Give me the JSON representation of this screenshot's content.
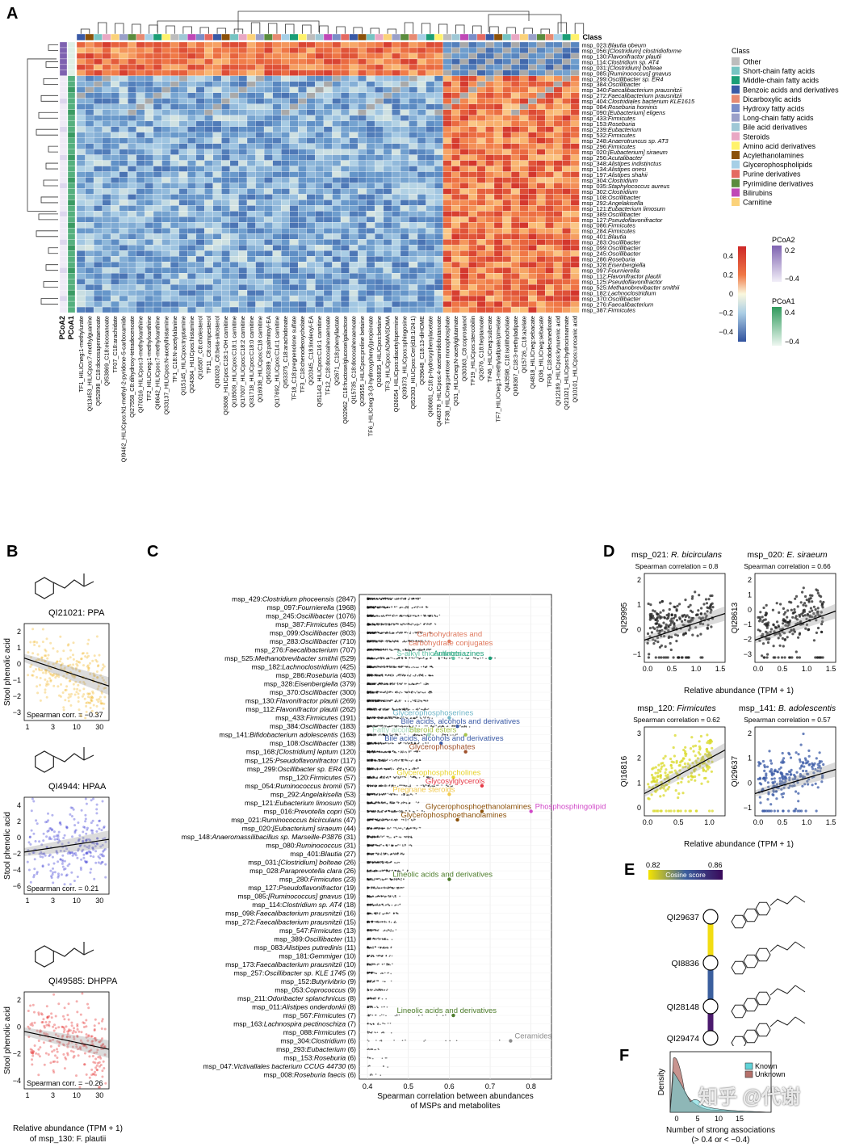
{
  "panels": {
    "A": "A",
    "B": "B",
    "C": "C",
    "D": "D",
    "E": "E",
    "F": "F"
  },
  "heatmap": {
    "class_label": "Class",
    "pcoa_labels": [
      "PCoA2",
      "PCoA1"
    ],
    "rows": [
      "msp_023:Blautia obeum",
      "msp_056:[Clostridium] clostridioforme",
      "msp_130:Flavonifractor plautii",
      "msp_114:Clostridium sp. AT4",
      "msp_031:[Clostridium] bolteae",
      "msp_085:[Ruminococcus] gnavus",
      "msp_299:Oscillibacter sp. ER4",
      "msp_384:Oscillibacter",
      "msp_340:Faecalibacterium prausnitzii",
      "msp_272:Faecalibacterium prausnitzii",
      "msp_404:Clostridiales bacterium KLE1615",
      "msp_084:Roseburia hominis",
      "msp_090:[Eubacterium] eligens",
      "msp_433:Firmicutes",
      "msp_153:Roseburia",
      "msp_239:Eubacterium",
      "msp_532:Firmicutes",
      "msp_248:Anaerotruncus sp. AT3",
      "msp_296:Firmicutes",
      "msp_020:[Eubacterium] siraeum",
      "msp_256:Acutalibacter",
      "msp_348:Alistipes indistinctus",
      "msp_134:Alistipes onesi",
      "msp_197:Alistipes shahii",
      "msp_304:Clostridium",
      "msp_035:Staphylococcus aureus",
      "msp_302:Clostridium",
      "msp_108:Oscillibacter",
      "msp_292:Angelakisella",
      "msp_121:Eubacterium limosum",
      "msp_389:Oscillibacter",
      "msp_127:Pseudoflavonifractor",
      "msp_086:Firmicutes",
      "msp_284:Firmicutes",
      "msp_401:Blautia",
      "msp_283:Oscillibacter",
      "msp_099:Oscillibacter",
      "msp_245:Oscillibacter",
      "msp_286:Roseburia",
      "msp_328:Eisenbergiella",
      "msp_097:Fournierella",
      "msp_112:Flavonifractor plautii",
      "msp_125:Pseudoflavonifractor",
      "msp_525:Methanobrevibacter smithii",
      "msp_182:Lachnoclostridium",
      "msp_370:Oscillibacter",
      "msp_276:Faecalibacterium",
      "msp_387:Firmicutes"
    ],
    "columns": [
      "TF1_HILICneg:1-methylurate",
      "QI13453_HILICpos:7-methylguanine",
      "QI52898_C18:docosapentaenoate",
      "QI53869_C18:eicosanoate",
      "TF07_C18:arachidate",
      "QI9462_HILICpos:N1-methyl-2-pyridone-5-carboxamide",
      "QI27558_C8:dihydroxy-tetradecenoate",
      "QI70016_HILICpos:3-methylxanthine",
      "TF2_HILICneg:1-methylxanthine",
      "QI8642_HILICpos:7-methylxanthine",
      "QI33137_HILICpos:N-acetylhistamine",
      "TF1_C18:N-acetylalanine",
      "QI15145_HILICpos:tryptamine",
      "QI24364_HILICpos:histamine",
      "QI16587_C8:cholesterol",
      "TF11_C8:campesterol",
      "QI30020_C8:beta-sitosterol",
      "QI3608_HILICpos:C18:1-OH carnitine",
      "QI18509_HILICpos:C18:1 carnitine",
      "QI17007_HILICpos:C18:2 carnitine",
      "QI31718_HILICpos:C18:0 carnitine",
      "QI16938_HILICpos:C18 carnitine",
      "QI50389_C8:palmitoyl-EA",
      "QI17692_HILICpos:C14:1 carnitine",
      "QI53375_C18:arachidonate",
      "TF18_C18:pregnenolone sulfate",
      "TF3_C18:chenodeoxycholate",
      "QI20345_C18:linoleoyl-EA",
      "QI51143_HILICpos:C16:1 carnitine",
      "TF12_C18:docosahexaenoate",
      "QI2671_C18:phenyllactate",
      "QI02962_C18:fructose/glucose/galactose",
      "QI15735_C18:docosahexaenoate",
      "QI39555_HILICpos:proline betaine",
      "TF6_HILICneg:3-(3-hydroxyphenyl)propionate",
      "QI26835_HILICpos:betaine",
      "TF3_HILICpos:ADMA/SDMA",
      "QI26054_HILICpos:diacetylspermine",
      "QI39373_HILICpos:sphingosine",
      "QI52303_HILICpos:Cer(d18:1/24:1)",
      "QI39648_C18:13-diHOME",
      "QI08681_C18:p-hydroxyphenylacetate",
      "QI46378_HILICpos:4-acetamidobutanoate",
      "TF38_HILICneg:pentose monophosphate",
      "QI31_HILICneg:N-acetylglutamate",
      "QI30363_C8:coprostanol",
      "TF19_HILICpos:stercobilin",
      "QI2676_C18:heptanoate",
      "TF46_HILICneg:suberate",
      "TF7_HILICneg:3-methyladipate/pimelate",
      "QI43598_C18:isolithocholate",
      "QI08367_C18:3-methyladipate",
      "QI15726_C18:azelate",
      "QI4818_HILICneg:sebacate",
      "QI36_HILICneg:sebacate",
      "TF06_C18:dodecanedioate",
      "QI12189_HILICpos:kynurenic acid",
      "QI21021_HILICpos:hydrocinnamate",
      "QI10101_HILICpos:urocanic acid"
    ],
    "class_legend": {
      "title": "Class",
      "items": [
        {
          "label": "Other",
          "color": "#bdbdbd"
        },
        {
          "label": "Short-chain fatty acids",
          "color": "#76c4c2"
        },
        {
          "label": "Middle-chain fatty acids",
          "color": "#1b9e77"
        },
        {
          "label": "Benzoic acids and derivatives",
          "color": "#3a5aa6"
        },
        {
          "label": "Dicarboxylic acids",
          "color": "#e78a72"
        },
        {
          "label": "Hydroxy fatty acids",
          "color": "#7b8ec8"
        },
        {
          "label": "Long-chain fatty acids",
          "color": "#9aa0c9"
        },
        {
          "label": "Bile acid derivatives",
          "color": "#9fc8d6"
        },
        {
          "label": "Steroids",
          "color": "#e9a8c4"
        },
        {
          "label": "Amino acid derivatives",
          "color": "#fff26b"
        },
        {
          "label": "Acylethanolamines",
          "color": "#8c510a"
        },
        {
          "label": "Glycerophospholipids",
          "color": "#a6cfe6"
        },
        {
          "label": "Purine derivatives",
          "color": "#e46a62"
        },
        {
          "label": "Pyrimidine derivatives",
          "color": "#5a8c3e"
        },
        {
          "label": "Bilirubins",
          "color": "#c048b6"
        },
        {
          "label": "Carnitine",
          "color": "#fbd27a"
        }
      ]
    },
    "scale_ticks": [
      "0.4",
      "0.2",
      "0",
      "−0.2",
      "−0.4"
    ],
    "pcoa2_legend": {
      "title": "PCoA2",
      "ticks": [
        "0.2",
        "−0.4"
      ]
    },
    "pcoa1_legend": {
      "title": "PCoA1",
      "ticks": [
        "0.4",
        "−0.4"
      ]
    }
  },
  "panelB": {
    "plots": [
      {
        "title": "QI21021: PPA",
        "ylabel": "Stool phenolic acid",
        "stat": "Spearman corr. = −0.37",
        "yticks": [
          "2",
          "1",
          "0",
          "−1",
          "−2",
          "−3"
        ],
        "color": "#f0b21a"
      },
      {
        "title": "QI4944: HPAA",
        "ylabel": "Stool phenolic acid",
        "stat": "Spearman corr. = 0.21",
        "yticks": [
          "4",
          "2",
          "0",
          "−2",
          "−4",
          "−6"
        ],
        "color": "#2a2ad0"
      },
      {
        "title": "QI49585: DHPPA",
        "ylabel": "Stool phenolic acid",
        "stat": "Spearman corr. = −0.26",
        "yticks": [
          "2",
          "0",
          "−2",
          "−4"
        ],
        "color": "#e21b1b"
      }
    ],
    "xticks": [
      "1",
      "3",
      "10",
      "30"
    ],
    "xlabel_line1": "Relative abundance (TPM + 1)",
    "xlabel_line2": "of msp_130: F. plautii"
  },
  "chart_data": [
    {
      "type": "scatter",
      "title": "",
      "xlabel": "Spearman correlation between abundances of MSPs and metabolites",
      "ylabel": "",
      "xlim": [
        0.38,
        0.85
      ],
      "xticks": [
        "0.4",
        "0.5",
        "0.6",
        "0.7",
        "0.8"
      ],
      "categories": [
        "msp_429:Clostridium phoceensis (2847)",
        "msp_097:Fournierella (1968)",
        "msp_245:Oscillibacter (1076)",
        "msp_387:Firmicutes (845)",
        "msp_099:Oscillibacter (803)",
        "msp_283:Oscillibacter (710)",
        "msp_276:Faecalibacterium (707)",
        "msp_525:Methanobrevibacter smithii (529)",
        "msp_182:Lachnoclostridium (425)",
        "msp_286:Roseburia (403)",
        "msp_328:Eisenbergiella (379)",
        "msp_370:Oscillibacter (300)",
        "msp_130:Flavonifractor plautii (269)",
        "msp_112:Flavonifractor plautii (262)",
        "msp_433:Firmicutes (191)",
        "msp_384:Oscillibacter (183)",
        "msp_141:Bifidobacterium adolescentis (163)",
        "msp_108:Oscillibacter (138)",
        "msp_168:[Clostridium] leptum (120)",
        "msp_125:Pseudoflavonifractor (117)",
        "msp_299:Oscillibacter sp. ER4 (90)",
        "msp_120:Firmicutes (57)",
        "msp_054:Ruminococcus bromii (57)",
        "msp_292:Angelakisella (53)",
        "msp_121:Eubacterium limosum (50)",
        "msp_016:Prevotella copri (50)",
        "msp_021:Ruminococcus bicirculans (47)",
        "msp_020:[Eubacterium] siraeum (44)",
        "msp_148:Anaeromassilibacillus sp. Marseille-P3876 (31)",
        "msp_080:Ruminococcus (31)",
        "msp_401:Blautia (27)",
        "msp_031:[Clostridium] bolteae (26)",
        "msp_028:Paraprevotella clara (26)",
        "msp_280:Firmicutes (23)",
        "msp_127:Pseudoflavonifractor (19)",
        "msp_085:[Ruminococcus] gnavus (19)",
        "msp_114:Clostridium sp. AT4 (18)",
        "msp_098:Faecalibacterium prausnitzii (16)",
        "msp_272:Faecalibacterium prausnitzii (15)",
        "msp_547:Firmicutes (13)",
        "msp_389:Oscillibacter (11)",
        "msp_083:Alistipes putredinis (11)",
        "msp_181:Gemmiger (10)",
        "msp_173:Faecalibacterium prausnitzii (10)",
        "msp_257:Oscillibacter sp. KLE 1745 (9)",
        "msp_152:Butyrivibrio (9)",
        "msp_053:Coprococcus (9)",
        "msp_211:Odoribacter splanchnicus (8)",
        "msp_011:Alistipes onderdonkii (8)",
        "msp_567:Firmicutes (7)",
        "msp_163:Lachnospira pectinoschiza (7)",
        "msp_088:Firmicutes (7)",
        "msp_304:Clostridium (6)",
        "msp_293:Eubacterium (6)",
        "msp_153:Roseburia (6)",
        "msp_047:Victivallales bacterium CCUG 44730 (6)",
        "msp_008:Roseburia faecis (6)"
      ],
      "max_values": [
        0.53,
        0.55,
        0.58,
        0.57,
        0.56,
        0.55,
        0.56,
        0.72,
        0.56,
        0.56,
        0.55,
        0.56,
        0.55,
        0.55,
        0.56,
        0.65,
        0.62,
        0.55,
        0.53,
        0.53,
        0.53,
        0.56,
        0.62,
        0.52,
        0.53,
        0.54,
        0.52,
        0.53,
        0.51,
        0.51,
        0.49,
        0.48,
        0.5,
        0.49,
        0.49,
        0.48,
        0.48,
        0.48,
        0.47,
        0.47,
        0.46,
        0.46,
        0.46,
        0.47,
        0.46,
        0.46,
        0.45,
        0.45,
        0.45,
        0.61,
        0.46,
        0.46,
        0.75,
        0.45,
        0.45,
        0.45,
        0.45
      ],
      "annotations": [
        {
          "row": 5,
          "x": 0.6,
          "label": "Carbohydrates and carbohydrate conjugates",
          "color": "#e07a5f"
        },
        {
          "row": 7,
          "x": 0.7,
          "label": "Aminotriazines",
          "color": "#1b9e77"
        },
        {
          "row": 7,
          "x": 0.61,
          "label": "S-alkyl thiosulfates",
          "color": "#66c2a5"
        },
        {
          "row": 14,
          "x": 0.6,
          "label": "Glycerophosphoserines",
          "color": "#72b7c9"
        },
        {
          "row": 15,
          "x": 0.62,
          "label": "Bile acids, alcohols and derivatives",
          "color": "#3a5aa6"
        },
        {
          "row": 16,
          "x": 0.55,
          "label": "Fatty alcohols",
          "color": "#a6d9c0"
        },
        {
          "row": 16,
          "x": 0.64,
          "label": "Steroid esters",
          "color": "#a8c34a"
        },
        {
          "row": 17,
          "x": 0.58,
          "label": "Bile acids, alcohols and derivatives",
          "color": "#3a5aa6"
        },
        {
          "row": 18,
          "x": 0.64,
          "label": "Glycerophosphates",
          "color": "#a0522d"
        },
        {
          "row": 21,
          "x": 0.61,
          "label": "Glycerophosphocholines",
          "color": "#e7d32b"
        },
        {
          "row": 22,
          "x": 0.68,
          "label": "Glycosylglycerols",
          "color": "#e63946"
        },
        {
          "row": 23,
          "x": 0.6,
          "label": "Pregnane steroids",
          "color": "#f2c94c"
        },
        {
          "row": 25,
          "x": 0.68,
          "label": "Glycerophosphoethanolamines",
          "color": "#8c510a"
        },
        {
          "row": 25,
          "x": 0.8,
          "label": "Phosphosphingolipids",
          "color": "#d148c8"
        },
        {
          "row": 26,
          "x": 0.62,
          "label": "Glycerophosphoethanolamines",
          "color": "#8c510a"
        },
        {
          "row": 33,
          "x": 0.6,
          "label": "Lineolic acids and derivatives",
          "color": "#4d7c2b"
        },
        {
          "row": 49,
          "x": 0.61,
          "label": "Lineolic acids and derivatives",
          "color": "#4d7c2b"
        },
        {
          "row": 52,
          "x": 0.75,
          "label": "Ceramides",
          "color": "#8c8c8c"
        }
      ]
    }
  ],
  "panelD": {
    "plots": [
      {
        "title_prefix": "msp_021: ",
        "title_italic": "R. bicirculans",
        "stat": "Spearman correlation = 0.8",
        "ylabel": "QI29995",
        "yticks": [
          "2",
          "1",
          "0",
          "−1"
        ],
        "color": "#222222"
      },
      {
        "title_prefix": "msp_020: ",
        "title_italic": "E. siraeum",
        "stat": "Spearman correlation = 0.66",
        "ylabel": "QI28613",
        "yticks": [
          "2",
          "1",
          "0",
          "−1",
          "−2",
          "−3"
        ],
        "color": "#222222"
      },
      {
        "title_prefix": "msp_120: ",
        "title_italic": "Firmicutes",
        "stat": "Spearman correlation = 0.62",
        "ylabel": "QI16816",
        "yticks": [
          "3",
          "2",
          "1",
          "0"
        ],
        "color": "#d9d92a"
      },
      {
        "title_prefix": "msp_141: ",
        "title_italic": "B. adolescentis",
        "stat": "Spearman correlation = 0.57",
        "ylabel": "QI29637",
        "yticks": [
          "2",
          "1",
          "0",
          "−1"
        ],
        "color": "#3a5aa6"
      }
    ],
    "xticks_top": [
      "0.0",
      "0.5",
      "1.0",
      "1.5"
    ],
    "xticks_top_right": [
      "0.0",
      "0.5",
      "1.0",
      "1.5"
    ],
    "xticks_bottom": [
      "0.0",
      "0.5",
      "1.0"
    ],
    "xticks_bottom_right": [
      "0.0",
      "0.5",
      "1.0",
      "1.5"
    ],
    "xlabel": "Relative abundance (TPM + 1)"
  },
  "panelE": {
    "scale_min": "0.82",
    "scale_max": "0.86",
    "scale_title": "Cosine score",
    "nodes": [
      "QI29637",
      "QI8836",
      "QI28148",
      "QI29474"
    ]
  },
  "panelF": {
    "ylabel": "Density",
    "xlabel_line1": "Number of strong associations",
    "xlabel_line2": "(> 0.4 or < −0.4)",
    "xticks": [
      "0",
      "5",
      "10",
      "15"
    ],
    "legend": [
      {
        "label": "Known",
        "color": "#5fd3d8"
      },
      {
        "label": "Unknown",
        "color": "#b5706a"
      }
    ]
  },
  "watermark": "知乎 @代谢"
}
